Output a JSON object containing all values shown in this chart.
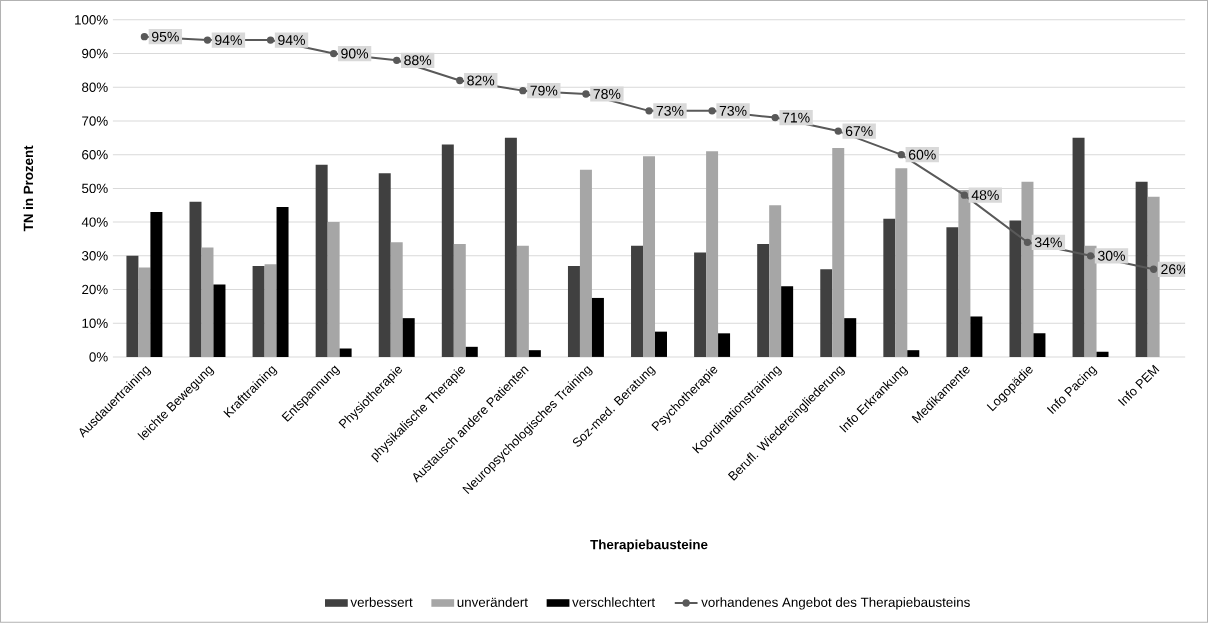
{
  "chart_data": {
    "type": "bar",
    "xlabel": "Therapiebausteine",
    "ylabel": "TN in Prozent",
    "categories": [
      "Ausdauertraining",
      "leichte Bewegung",
      "Krafttraining",
      "Entspannung",
      "Physiotherapie",
      "physikalische Therapie",
      "Austausch andere Patienten",
      "Neuropsychologisches Training",
      "Soz-med. Beratung",
      "Psychotherapie",
      "Koordinationstraining",
      "Berufl. Wiedereingliederung",
      "Info Erkrankung",
      "Medikamente",
      "Logopädie",
      "Info Pacing",
      "Info PEM"
    ],
    "series": [
      {
        "name": "verbessert",
        "color": "#404040",
        "values": [
          30,
          46,
          27,
          57,
          54.5,
          63,
          65,
          27,
          33,
          31,
          33.5,
          26,
          41,
          38.5,
          40.5,
          65,
          52
        ]
      },
      {
        "name": "unverändert",
        "color": "#a6a6a6",
        "values": [
          26.5,
          32.5,
          27.5,
          40,
          34,
          33.5,
          33,
          55.5,
          59.5,
          61,
          45,
          62,
          56,
          49.5,
          52,
          33,
          47.5
        ]
      },
      {
        "name": "verschlechtert",
        "color": "#000000",
        "values": [
          43,
          21.5,
          44.5,
          2.5,
          11.5,
          3,
          2,
          17.5,
          7.5,
          7,
          21,
          11.5,
          2,
          12,
          7,
          1.5,
          0
        ]
      },
      {
        "name": "vorhandenes Angebot des Therapiebausteins",
        "type": "line",
        "color": "#595959",
        "marker": "circle",
        "values": [
          95,
          94,
          94,
          90,
          88,
          82,
          79,
          78,
          73,
          73,
          71,
          67,
          60,
          48,
          34,
          30,
          26
        ],
        "value_labels": [
          "95%",
          "94%",
          "94%",
          "90%",
          "88%",
          "82%",
          "79%",
          "78%",
          "73%",
          "73%",
          "71%",
          "67%",
          "60%",
          "48%",
          "34%",
          "30%",
          "26%"
        ]
      }
    ],
    "ylim": [
      0,
      100
    ],
    "yticks": [
      {
        "value": 0,
        "label": "0%"
      },
      {
        "value": 10,
        "label": "10%"
      },
      {
        "value": 20,
        "label": "20%"
      },
      {
        "value": 30,
        "label": "30%"
      },
      {
        "value": 40,
        "label": "40%"
      },
      {
        "value": 50,
        "label": "50%"
      },
      {
        "value": 60,
        "label": "60%"
      },
      {
        "value": 70,
        "label": "70%"
      },
      {
        "value": 80,
        "label": "80%"
      },
      {
        "value": 90,
        "label": "90%"
      },
      {
        "value": 100,
        "label": "100%"
      }
    ],
    "grid": "y",
    "legend": "bottom"
  }
}
